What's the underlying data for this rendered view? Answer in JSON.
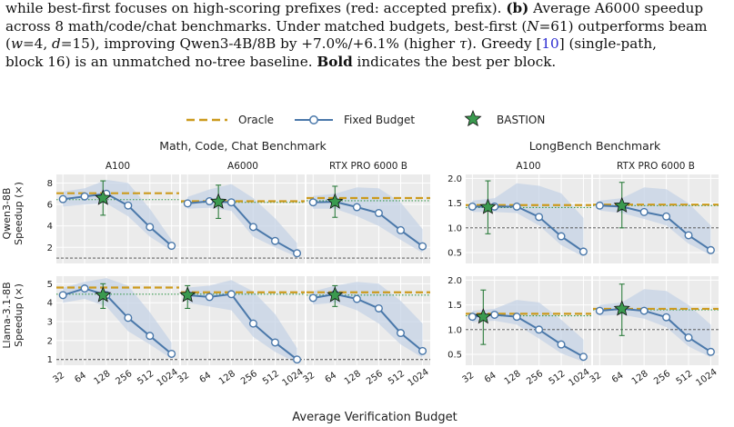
{
  "caption": {
    "line1": "while best-first focuses on high-scoring prefixes (red: accepted prefix). ",
    "line1_bold": "(b)",
    "line1_tail": " Average A6000 speedup",
    "line2": "across 8 math/code/chat benchmarks. Under matched budgets, best-first (",
    "line2_N": "N",
    "line2_b": "=61) outperforms beam",
    "line3_a": "(",
    "line3_w": "w",
    "line3_b": "=4, ",
    "line3_d": "d",
    "line3_c": "=15), improving Qwen3-4B/8B by +7.0%/+6.1% (higher ",
    "line3_tau": "τ",
    "line3_d2": "). Greedy [",
    "line3_ref": "10",
    "line3_e": "] (single-path,",
    "line4_a": "block 16) is an unmatched no-tree baseline. ",
    "line4_bold": "Bold",
    "line4_b": " indicates the best per block."
  },
  "legend": {
    "oracle": "Oracle",
    "fixed": "Fixed Budget",
    "bastion": "BASTION"
  },
  "colors": {
    "oracle": "#cc9a1d",
    "fixed": "#4a78aa",
    "band": "#c5d3e6",
    "bastion": "#3a9a4f",
    "panel_bg": "#ebebeb",
    "greedy": "#3a9a4f"
  },
  "chart_data": {
    "type": "line",
    "xlabel": "Average Verification Budget",
    "x_ticks": [
      "32",
      "64",
      "128",
      "256",
      "512",
      "1024"
    ],
    "x": [
      32,
      64,
      128,
      256,
      512,
      1024
    ],
    "x_scale": "log2",
    "ylabel_unit": "Speedup (×)",
    "groups": [
      {
        "title": "Math, Code, Chat Benchmark",
        "columns": [
          "A100",
          "A6000",
          "RTX PRO 6000 B"
        ]
      },
      {
        "title": "LongBench Benchmark",
        "columns": [
          "A100",
          "RTX PRO 6000 B"
        ]
      }
    ],
    "rows": [
      {
        "model": "Qwen3-8B",
        "row_index": 0
      },
      {
        "model": "Llama-3.1-8B",
        "row_index": 1
      }
    ],
    "panels": [
      {
        "row": 0,
        "group": 0,
        "col": 0,
        "ylim": [
          0.5,
          8.8
        ],
        "yticks": [
          2,
          4,
          6,
          8
        ],
        "fixed": [
          6.5,
          6.75,
          7.0,
          5.9,
          3.9,
          2.15
        ],
        "band_low": [
          5.8,
          6.0,
          6.1,
          4.9,
          3.0,
          1.7
        ],
        "band_high": [
          7.2,
          7.5,
          8.3,
          8.0,
          5.6,
          2.7
        ],
        "oracle": 7.05,
        "greedy": 6.45,
        "baseline": 1.0,
        "bastion": {
          "x": 115,
          "y": 6.6,
          "err_low": 5.0,
          "err_high": 8.2
        }
      },
      {
        "row": 0,
        "group": 0,
        "col": 1,
        "ylim": [
          0.5,
          8.8
        ],
        "yticks": [
          2,
          4,
          6,
          8
        ],
        "fixed": [
          6.1,
          6.3,
          6.2,
          3.9,
          2.6,
          1.45
        ],
        "band_low": [
          5.6,
          5.7,
          5.4,
          3.0,
          2.0,
          1.1
        ],
        "band_high": [
          6.7,
          7.4,
          7.9,
          6.6,
          4.7,
          2.4
        ],
        "oracle": 6.3,
        "greedy": 6.2,
        "baseline": 1.0,
        "bastion": {
          "x": 85,
          "y": 6.25,
          "err_low": 4.7,
          "err_high": 7.8
        }
      },
      {
        "row": 0,
        "group": 0,
        "col": 2,
        "ylim": [
          0.5,
          8.8
        ],
        "yticks": [
          2,
          4,
          6,
          8
        ],
        "fixed": [
          6.2,
          6.25,
          5.75,
          5.2,
          3.6,
          2.1
        ],
        "band_low": [
          5.6,
          5.6,
          4.9,
          4.0,
          2.7,
          1.5
        ],
        "band_high": [
          6.8,
          7.0,
          7.6,
          7.5,
          6.2,
          3.7
        ],
        "oracle": 6.6,
        "greedy": 6.35,
        "baseline": 1.0,
        "bastion": {
          "x": 64,
          "y": 6.25,
          "err_low": 4.8,
          "err_high": 7.7
        }
      },
      {
        "row": 0,
        "group": 1,
        "col": 0,
        "ylim": [
          0.28,
          2.08
        ],
        "yticks": [
          0.5,
          1.0,
          1.5,
          2.0
        ],
        "fixed": [
          1.43,
          1.43,
          1.43,
          1.22,
          0.83,
          0.52
        ],
        "band_low": [
          1.32,
          1.32,
          1.3,
          1.05,
          0.65,
          0.42
        ],
        "band_high": [
          1.55,
          1.6,
          1.9,
          1.85,
          1.7,
          1.2
        ],
        "oracle": 1.46,
        "greedy": 1.41,
        "baseline": 1.0,
        "bastion": {
          "x": 52,
          "y": 1.42,
          "err_low": 0.88,
          "err_high": 1.95
        }
      },
      {
        "row": 0,
        "group": 1,
        "col": 1,
        "ylim": [
          0.28,
          2.08
        ],
        "yticks": [
          0.5,
          1.0,
          1.5,
          2.0
        ],
        "fixed": [
          1.45,
          1.43,
          1.32,
          1.23,
          0.85,
          0.55
        ],
        "band_low": [
          1.35,
          1.3,
          1.18,
          1.05,
          0.68,
          0.45
        ],
        "band_high": [
          1.55,
          1.6,
          1.82,
          1.78,
          1.5,
          1.05
        ],
        "oracle": 1.47,
        "greedy": 1.45,
        "baseline": 1.0,
        "bastion": {
          "x": 64,
          "y": 1.45,
          "err_low": 1.0,
          "err_high": 1.92
        }
      },
      {
        "row": 1,
        "group": 0,
        "col": 0,
        "ylim": [
          0.7,
          5.4
        ],
        "yticks": [
          1,
          2,
          3,
          4,
          5
        ],
        "fixed": [
          4.4,
          4.75,
          4.4,
          3.2,
          2.25,
          1.3
        ],
        "band_low": [
          4.0,
          4.2,
          3.8,
          2.5,
          1.8,
          1.05
        ],
        "band_high": [
          4.8,
          5.1,
          5.3,
          4.9,
          3.5,
          1.9
        ],
        "oracle": 4.8,
        "greedy": 4.45,
        "baseline": 1.0,
        "bastion": {
          "x": 115,
          "y": 4.4,
          "err_low": 3.7,
          "err_high": 5.0
        }
      },
      {
        "row": 1,
        "group": 0,
        "col": 1,
        "ylim": [
          0.7,
          5.4
        ],
        "yticks": [
          1,
          2,
          3,
          4,
          5
        ],
        "fixed": [
          4.4,
          4.3,
          4.45,
          2.9,
          1.9,
          1.0
        ],
        "band_low": [
          4.0,
          3.8,
          3.6,
          2.2,
          1.4,
          0.8
        ],
        "band_high": [
          4.8,
          4.9,
          5.2,
          4.6,
          3.4,
          1.6
        ],
        "oracle": 4.55,
        "greedy": 4.45,
        "baseline": 1.0,
        "bastion": {
          "x": 32,
          "y": 4.4,
          "err_low": 3.7,
          "err_high": 4.9
        }
      },
      {
        "row": 1,
        "group": 0,
        "col": 2,
        "ylim": [
          0.7,
          5.4
        ],
        "yticks": [
          1,
          2,
          3,
          4,
          5
        ],
        "fixed": [
          4.25,
          4.45,
          4.2,
          3.7,
          2.4,
          1.45
        ],
        "band_low": [
          3.9,
          4.0,
          3.6,
          2.9,
          1.8,
          1.1
        ],
        "band_high": [
          4.6,
          4.9,
          5.1,
          5.0,
          4.1,
          2.9
        ],
        "oracle": 4.55,
        "greedy": 4.4,
        "baseline": 1.0,
        "bastion": {
          "x": 64,
          "y": 4.4,
          "err_low": 3.8,
          "err_high": 4.9
        }
      },
      {
        "row": 1,
        "group": 1,
        "col": 0,
        "ylim": [
          0.28,
          2.08
        ],
        "yticks": [
          0.5,
          1.0,
          1.5,
          2.0
        ],
        "fixed": [
          1.26,
          1.3,
          1.26,
          1.0,
          0.7,
          0.45
        ],
        "band_low": [
          1.15,
          1.18,
          1.1,
          0.82,
          0.52,
          0.35
        ],
        "band_high": [
          1.38,
          1.42,
          1.6,
          1.55,
          1.2,
          0.8
        ],
        "oracle": 1.32,
        "greedy": 1.28,
        "baseline": 1.0,
        "bastion": {
          "x": 45,
          "y": 1.26,
          "err_low": 0.7,
          "err_high": 1.8
        }
      },
      {
        "row": 1,
        "group": 1,
        "col": 1,
        "ylim": [
          0.28,
          2.08
        ],
        "yticks": [
          0.5,
          1.0,
          1.5,
          2.0
        ],
        "fixed": [
          1.38,
          1.42,
          1.38,
          1.25,
          0.84,
          0.55
        ],
        "band_low": [
          1.28,
          1.3,
          1.22,
          1.05,
          0.66,
          0.44
        ],
        "band_high": [
          1.5,
          1.55,
          1.82,
          1.78,
          1.5,
          1.1
        ],
        "oracle": 1.42,
        "greedy": 1.4,
        "baseline": 1.0,
        "bastion": {
          "x": 64,
          "y": 1.42,
          "err_low": 0.88,
          "err_high": 1.92
        }
      }
    ]
  }
}
